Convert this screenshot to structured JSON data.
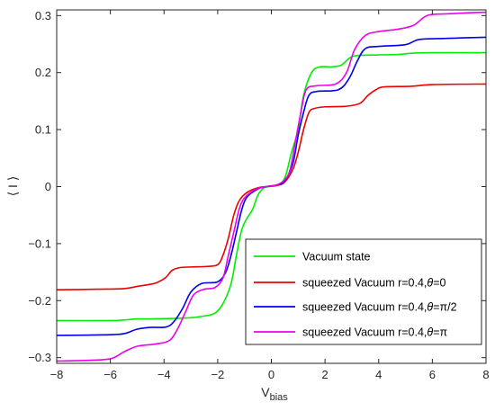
{
  "chart_data": {
    "type": "line",
    "xlabel_main": "V",
    "xlabel_sub": "bias",
    "ylabel": "⟨ I ⟩",
    "xlim": [
      -8,
      8
    ],
    "ylim": [
      -0.31,
      0.31
    ],
    "xticks": [
      -8,
      -6,
      -4,
      -2,
      0,
      2,
      4,
      6,
      8
    ],
    "xtick_labels": [
      "−8",
      "−6",
      "−4",
      "−2",
      "0",
      "2",
      "4",
      "6",
      "8"
    ],
    "yticks": [
      -0.3,
      -0.2,
      -0.1,
      0,
      0.1,
      0.2,
      0.3
    ],
    "ytick_labels": [
      "−0.3",
      "−0.2",
      "−0.1",
      "0",
      "0.1",
      "0.2",
      "0.3"
    ],
    "grid": false,
    "legend_position": "bottom-right",
    "series": [
      {
        "name_prefix": "Vacuum state",
        "name_suffix": "",
        "color": "#00ee00",
        "points": [
          [
            -8,
            -0.235
          ],
          [
            -6,
            -0.235
          ],
          [
            -5.5,
            -0.234
          ],
          [
            -5.0,
            -0.232
          ],
          [
            -4.5,
            -0.232
          ],
          [
            -3.5,
            -0.231
          ],
          [
            -3.0,
            -0.23
          ],
          [
            -2.5,
            -0.227
          ],
          [
            -2.1,
            -0.222
          ],
          [
            -1.8,
            -0.205
          ],
          [
            -1.5,
            -0.17
          ],
          [
            -1.3,
            -0.12
          ],
          [
            -1.1,
            -0.075
          ],
          [
            -0.9,
            -0.055
          ],
          [
            -0.7,
            -0.04
          ],
          [
            -0.5,
            -0.015
          ],
          [
            -0.3,
            -0.003
          ],
          [
            -0.1,
            0
          ],
          [
            0.2,
            0.002
          ],
          [
            0.5,
            0.015
          ],
          [
            0.75,
            0.06
          ],
          [
            1.0,
            0.1
          ],
          [
            1.2,
            0.16
          ],
          [
            1.5,
            0.2
          ],
          [
            1.8,
            0.21
          ],
          [
            2.2,
            0.21
          ],
          [
            2.6,
            0.213
          ],
          [
            2.9,
            0.225
          ],
          [
            3.2,
            0.23
          ],
          [
            4.0,
            0.231
          ],
          [
            4.8,
            0.232
          ],
          [
            5.2,
            0.234
          ],
          [
            6,
            0.235
          ],
          [
            8,
            0.235
          ]
        ]
      },
      {
        "name_prefix": "squeezed Vacuum r=0.4,",
        "name_suffix": "=0",
        "color": "#ee0000",
        "points": [
          [
            -8,
            -0.181
          ],
          [
            -6.5,
            -0.18
          ],
          [
            -5.5,
            -0.179
          ],
          [
            -5.0,
            -0.175
          ],
          [
            -4.6,
            -0.172
          ],
          [
            -4.3,
            -0.169
          ],
          [
            -3.95,
            -0.16
          ],
          [
            -3.7,
            -0.147
          ],
          [
            -3.4,
            -0.142
          ],
          [
            -3.0,
            -0.141
          ],
          [
            -2.4,
            -0.14
          ],
          [
            -2.0,
            -0.137
          ],
          [
            -1.8,
            -0.12
          ],
          [
            -1.6,
            -0.09
          ],
          [
            -1.4,
            -0.05
          ],
          [
            -1.2,
            -0.025
          ],
          [
            -0.9,
            -0.01
          ],
          [
            -0.5,
            -0.002
          ],
          [
            -0.2,
            0
          ],
          [
            0.2,
            0.002
          ],
          [
            0.5,
            0.008
          ],
          [
            0.8,
            0.03
          ],
          [
            1.0,
            0.06
          ],
          [
            1.2,
            0.1
          ],
          [
            1.4,
            0.13
          ],
          [
            1.6,
            0.137
          ],
          [
            2.0,
            0.14
          ],
          [
            2.8,
            0.141
          ],
          [
            3.3,
            0.146
          ],
          [
            3.6,
            0.16
          ],
          [
            3.9,
            0.17
          ],
          [
            4.2,
            0.175
          ],
          [
            5.2,
            0.176
          ],
          [
            6.0,
            0.179
          ],
          [
            8,
            0.18
          ]
        ]
      },
      {
        "name_prefix": "squeezed Vacuum r=0.4,",
        "name_suffix": "=π/2",
        "color": "#0000ee",
        "points": [
          [
            -8,
            -0.261
          ],
          [
            -6.2,
            -0.26
          ],
          [
            -5.5,
            -0.258
          ],
          [
            -5.0,
            -0.25
          ],
          [
            -4.5,
            -0.247
          ],
          [
            -3.9,
            -0.246
          ],
          [
            -3.6,
            -0.235
          ],
          [
            -3.3,
            -0.213
          ],
          [
            -3.0,
            -0.185
          ],
          [
            -2.6,
            -0.17
          ],
          [
            -2.0,
            -0.167
          ],
          [
            -1.7,
            -0.15
          ],
          [
            -1.5,
            -0.12
          ],
          [
            -1.3,
            -0.08
          ],
          [
            -1.1,
            -0.04
          ],
          [
            -0.9,
            -0.018
          ],
          [
            -0.5,
            -0.004
          ],
          [
            -0.2,
            0
          ],
          [
            0.2,
            0.003
          ],
          [
            0.5,
            0.01
          ],
          [
            0.8,
            0.04
          ],
          [
            1.0,
            0.09
          ],
          [
            1.2,
            0.13
          ],
          [
            1.4,
            0.16
          ],
          [
            1.7,
            0.167
          ],
          [
            2.5,
            0.17
          ],
          [
            2.9,
            0.19
          ],
          [
            3.2,
            0.22
          ],
          [
            3.5,
            0.242
          ],
          [
            4.0,
            0.246
          ],
          [
            5.0,
            0.249
          ],
          [
            5.5,
            0.258
          ],
          [
            6.5,
            0.26
          ],
          [
            8,
            0.262
          ]
        ]
      },
      {
        "name_prefix": "squeezed Vacuum r=0.4,",
        "name_suffix": "=π",
        "color": "#ee00ee",
        "points": [
          [
            -8,
            -0.306
          ],
          [
            -7.0,
            -0.305
          ],
          [
            -6.0,
            -0.302
          ],
          [
            -5.5,
            -0.29
          ],
          [
            -5.0,
            -0.28
          ],
          [
            -4.3,
            -0.276
          ],
          [
            -3.8,
            -0.27
          ],
          [
            -3.5,
            -0.25
          ],
          [
            -3.2,
            -0.22
          ],
          [
            -2.9,
            -0.19
          ],
          [
            -2.5,
            -0.18
          ],
          [
            -2.1,
            -0.177
          ],
          [
            -1.8,
            -0.16
          ],
          [
            -1.6,
            -0.12
          ],
          [
            -1.4,
            -0.08
          ],
          [
            -1.2,
            -0.04
          ],
          [
            -1.0,
            -0.02
          ],
          [
            -0.6,
            -0.005
          ],
          [
            -0.2,
            0
          ],
          [
            0.2,
            0.003
          ],
          [
            0.5,
            0.012
          ],
          [
            0.7,
            0.03
          ],
          [
            0.9,
            0.08
          ],
          [
            1.1,
            0.13
          ],
          [
            1.3,
            0.17
          ],
          [
            1.7,
            0.177
          ],
          [
            2.4,
            0.18
          ],
          [
            2.8,
            0.2
          ],
          [
            3.1,
            0.24
          ],
          [
            3.5,
            0.265
          ],
          [
            4.0,
            0.272
          ],
          [
            4.7,
            0.276
          ],
          [
            5.3,
            0.283
          ],
          [
            5.8,
            0.3
          ],
          [
            6.5,
            0.303
          ],
          [
            8,
            0.306
          ]
        ]
      }
    ]
  }
}
